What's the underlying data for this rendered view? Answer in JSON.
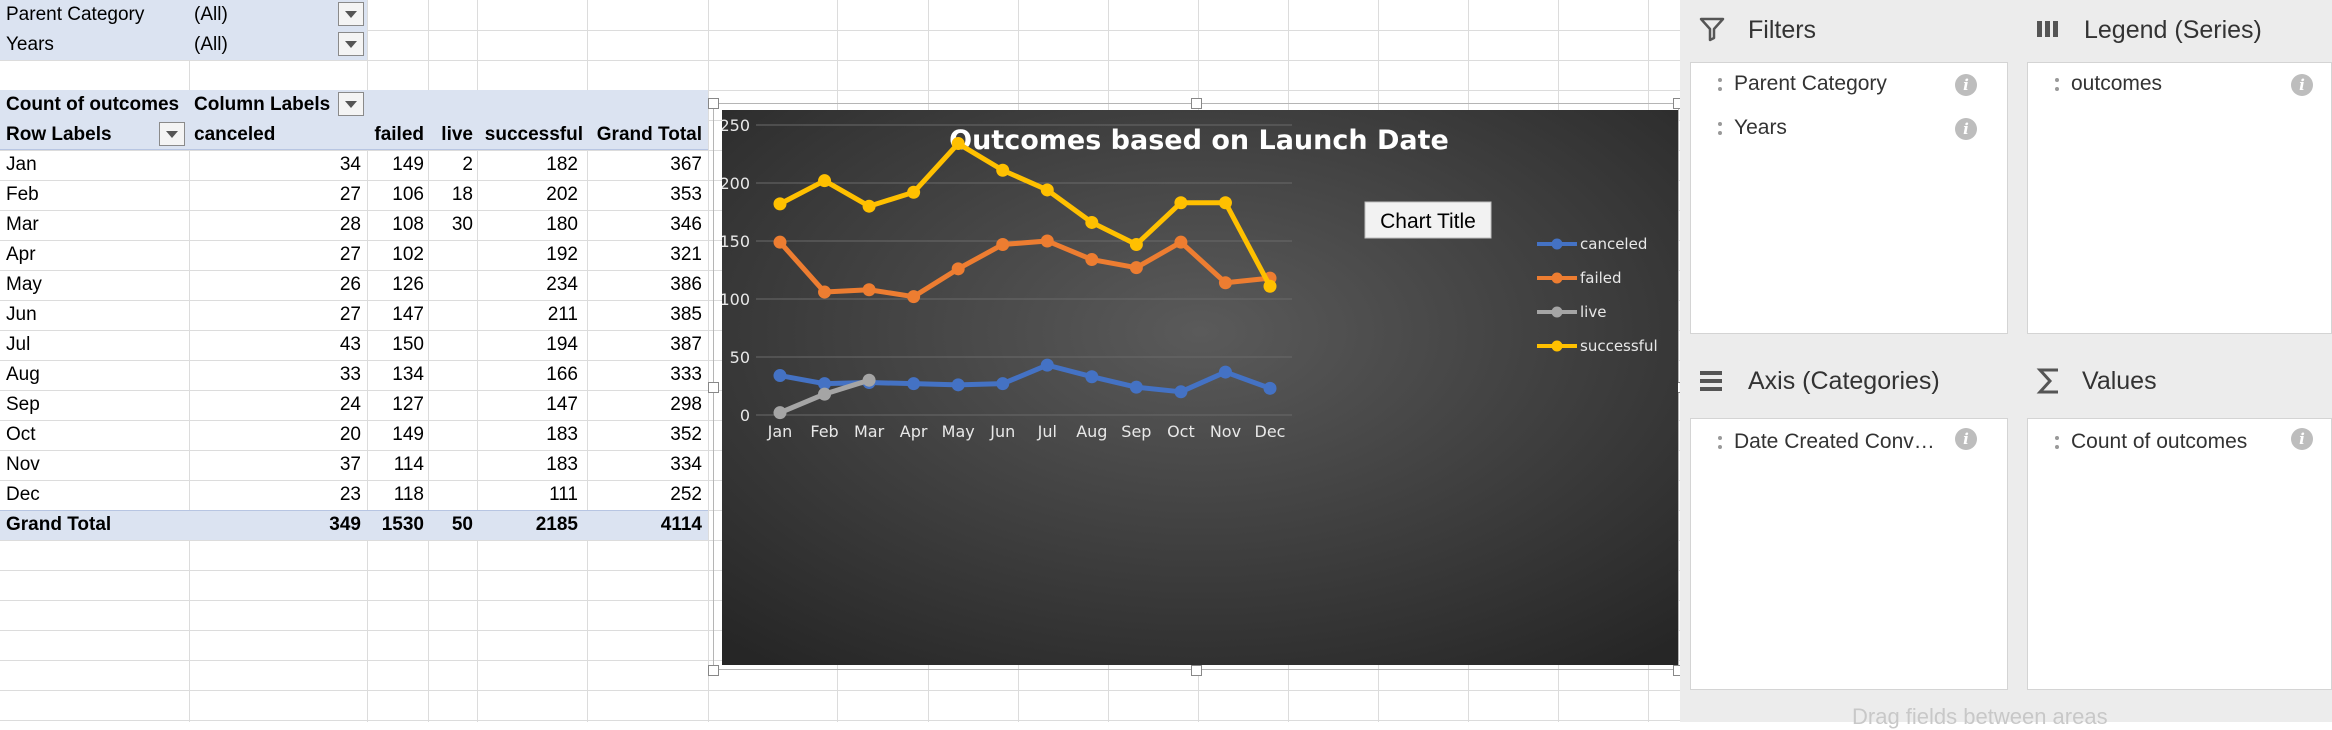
{
  "filters": [
    {
      "label": "Parent Category",
      "value": "(All)"
    },
    {
      "label": "Years",
      "value": "(All)"
    }
  ],
  "pivot": {
    "header_count": "Count of outcomes",
    "header_columns": "Column Labels",
    "header_rows": "Row Labels",
    "columns": [
      "canceled",
      "failed",
      "live",
      "successful",
      "Grand Total"
    ],
    "rows": [
      {
        "label": "Jan",
        "values": [
          "34",
          "149",
          "2",
          "182",
          "367"
        ]
      },
      {
        "label": "Feb",
        "values": [
          "27",
          "106",
          "18",
          "202",
          "353"
        ]
      },
      {
        "label": "Mar",
        "values": [
          "28",
          "108",
          "30",
          "180",
          "346"
        ]
      },
      {
        "label": "Apr",
        "values": [
          "27",
          "102",
          "",
          "192",
          "321"
        ]
      },
      {
        "label": "May",
        "values": [
          "26",
          "126",
          "",
          "234",
          "386"
        ]
      },
      {
        "label": "Jun",
        "values": [
          "27",
          "147",
          "",
          "211",
          "385"
        ]
      },
      {
        "label": "Jul",
        "values": [
          "43",
          "150",
          "",
          "194",
          "387"
        ]
      },
      {
        "label": "Aug",
        "values": [
          "33",
          "134",
          "",
          "166",
          "333"
        ]
      },
      {
        "label": "Sep",
        "values": [
          "24",
          "127",
          "",
          "147",
          "298"
        ]
      },
      {
        "label": "Oct",
        "values": [
          "20",
          "149",
          "",
          "183",
          "352"
        ]
      },
      {
        "label": "Nov",
        "values": [
          "37",
          "114",
          "",
          "183",
          "334"
        ]
      },
      {
        "label": "Dec",
        "values": [
          "23",
          "118",
          "",
          "111",
          "252"
        ]
      }
    ],
    "total": {
      "label": "Grand Total",
      "values": [
        "349",
        "1530",
        "50",
        "2185",
        "4114"
      ]
    }
  },
  "chart_data": {
    "type": "line",
    "title": "Outcomes based on Launch Date",
    "floating_label": "Chart Title",
    "categories": [
      "Jan",
      "Feb",
      "Mar",
      "Apr",
      "May",
      "Jun",
      "Jul",
      "Aug",
      "Sep",
      "Oct",
      "Nov",
      "Dec"
    ],
    "series": [
      {
        "name": "canceled",
        "color": "#4472c4",
        "values": [
          34,
          27,
          28,
          27,
          26,
          27,
          43,
          33,
          24,
          20,
          37,
          23
        ]
      },
      {
        "name": "failed",
        "color": "#ed7d31",
        "values": [
          149,
          106,
          108,
          102,
          126,
          147,
          150,
          134,
          127,
          149,
          114,
          118
        ]
      },
      {
        "name": "live",
        "color": "#a5a5a5",
        "values": [
          2,
          18,
          30,
          null,
          null,
          null,
          null,
          null,
          null,
          null,
          null,
          null
        ]
      },
      {
        "name": "successful",
        "color": "#ffc000",
        "values": [
          182,
          202,
          180,
          192,
          234,
          211,
          194,
          166,
          147,
          183,
          183,
          111
        ]
      }
    ],
    "yticks": [
      "0",
      "50",
      "100",
      "150",
      "200",
      "250"
    ],
    "ylim": [
      0,
      250
    ],
    "grid": true,
    "legend_position": "right",
    "background": "#3a3a3a"
  },
  "panel": {
    "filters_title": "Filters",
    "legend_title": "Legend (Series)",
    "axis_title": "Axis (Categories)",
    "values_title": "Values",
    "filters_items": [
      "Parent Category",
      "Years"
    ],
    "legend_items": [
      "outcomes"
    ],
    "axis_items": [
      "Date Created Conv…"
    ],
    "values_items": [
      "Count of outcomes"
    ],
    "drag_hint": "Drag fields between areas",
    "icons": {
      "filters": "funnel-icon",
      "legend": "columns-icon",
      "axis": "rows-icon",
      "values": "sigma-icon",
      "info": "info-icon"
    }
  }
}
